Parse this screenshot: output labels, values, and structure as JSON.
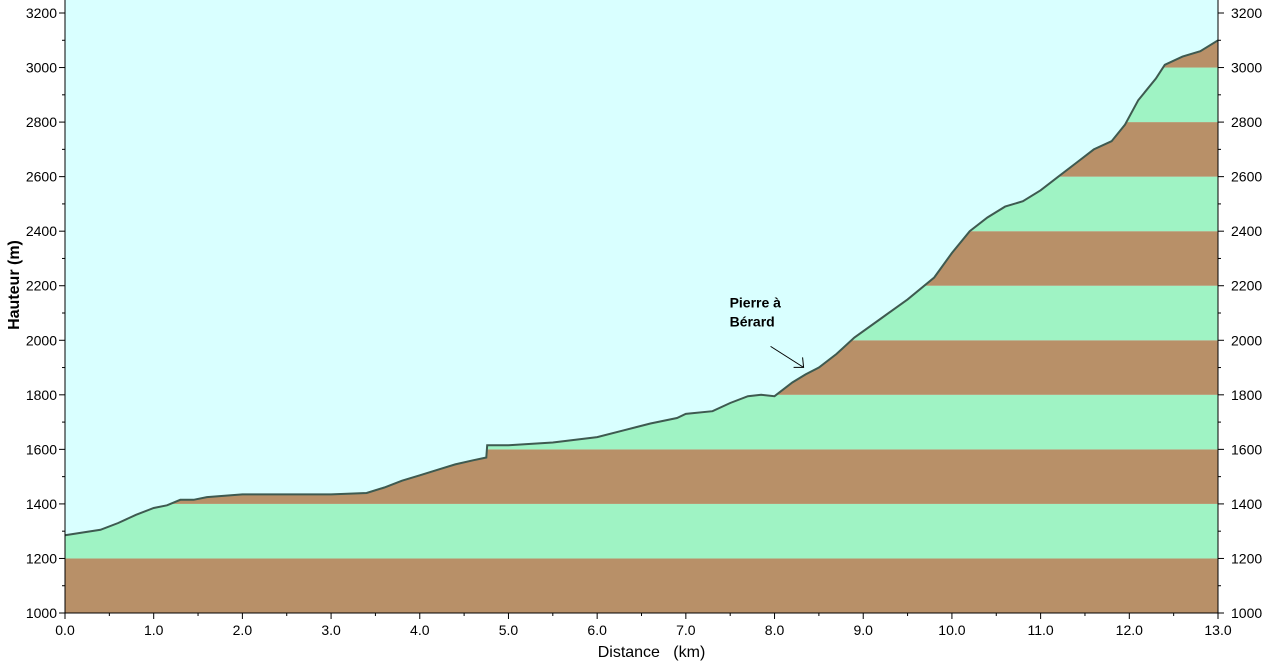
{
  "chart_data": {
    "type": "area",
    "xlabel": "Distance   (km)",
    "ylabel": "Hauteur (m)",
    "xlim": [
      0,
      13
    ],
    "ylim": [
      1000,
      3200
    ],
    "x_ticks": [
      "0.0",
      "1.0",
      "2.0",
      "3.0",
      "4.0",
      "5.0",
      "6.0",
      "7.0",
      "8.0",
      "9.0",
      "10.0",
      "11.0",
      "12.0",
      "13.0"
    ],
    "y_ticks": [
      "1000",
      "1200",
      "1400",
      "1600",
      "1800",
      "2000",
      "2200",
      "2400",
      "2600",
      "2800",
      "3000",
      "3200"
    ],
    "grid": false,
    "series": [
      {
        "x": [
          0.0,
          0.2,
          0.4,
          0.6,
          0.8,
          1.0,
          1.15,
          1.3,
          1.45,
          1.6,
          1.8,
          2.0,
          2.5,
          3.0,
          3.4,
          3.6,
          3.8,
          4.0,
          4.2,
          4.4,
          4.6,
          4.75,
          4.76,
          5.0,
          5.5,
          6.0,
          6.3,
          6.6,
          6.9,
          7.0,
          7.3,
          7.5,
          7.7,
          7.85,
          8.0,
          8.2,
          8.35,
          8.5,
          8.7,
          8.9,
          9.2,
          9.5,
          9.8,
          10.0,
          10.2,
          10.4,
          10.6,
          10.8,
          11.0,
          11.2,
          11.4,
          11.6,
          11.8,
          11.95,
          12.1,
          12.3,
          12.4,
          12.6,
          12.8,
          13.0
        ],
        "y": [
          1285,
          1295,
          1305,
          1330,
          1360,
          1385,
          1395,
          1415,
          1415,
          1425,
          1430,
          1435,
          1435,
          1435,
          1440,
          1460,
          1485,
          1505,
          1525,
          1545,
          1560,
          1570,
          1615,
          1615,
          1625,
          1645,
          1670,
          1695,
          1715,
          1730,
          1740,
          1770,
          1795,
          1800,
          1795,
          1845,
          1875,
          1900,
          1950,
          2010,
          2080,
          2150,
          2230,
          2320,
          2400,
          2450,
          2490,
          2510,
          2550,
          2600,
          2650,
          2700,
          2730,
          2790,
          2880,
          2960,
          3010,
          3040,
          3060,
          3100
        ]
      }
    ],
    "band_step": 200,
    "colors": {
      "sky": "#d9ffff",
      "band_brown": "#b89068",
      "band_green": "#9ff3c4",
      "profile_line": "#3e5a50",
      "axis": "#000000"
    },
    "annotations": [
      {
        "text": "Pierre à",
        "x": 8.35,
        "y": 1875
      },
      {
        "text": "Bérard",
        "x": 8.35,
        "y": 1875
      }
    ]
  }
}
